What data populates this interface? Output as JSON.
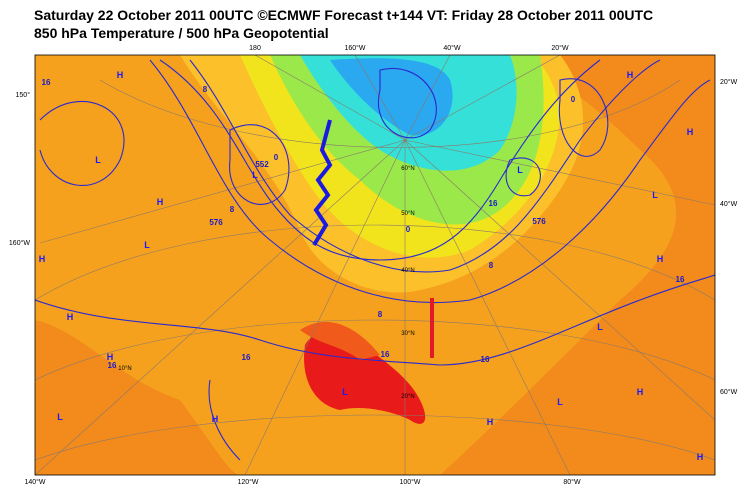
{
  "header": {
    "title": "Saturday 22 October 2011 00UTC ©ECMWF Forecast t+144 VT: Friday 28 October 2011 00UTC",
    "subtitle": "850 hPa Temperature / 500 hPa Geopotential"
  },
  "edge_labels": {
    "top": [
      "180",
      "160°W",
      "40°W",
      "20°W"
    ],
    "left": [
      "150°",
      "160°W"
    ],
    "right": [
      "20°W",
      "40°W",
      "60°W"
    ],
    "bottom": [
      "140°W",
      "120°W",
      "100°W",
      "80°W"
    ]
  },
  "latitude_labels": [
    "60°N",
    "50°N",
    "40°N",
    "30°N",
    "20°N",
    "10°N"
  ],
  "pressure_centers": [
    "H",
    "H",
    "L",
    "L",
    "H",
    "L",
    "H",
    "H",
    "L",
    "H",
    "H",
    "L",
    "H",
    "L",
    "H",
    "L",
    "H",
    "L",
    "H",
    "L",
    "H"
  ],
  "contour_labels": [
    "16",
    "8",
    "0",
    "552",
    "576",
    "0",
    "8",
    "16",
    "16",
    "8",
    "16",
    "16",
    "0",
    "8",
    "16",
    "16",
    "576"
  ]
}
